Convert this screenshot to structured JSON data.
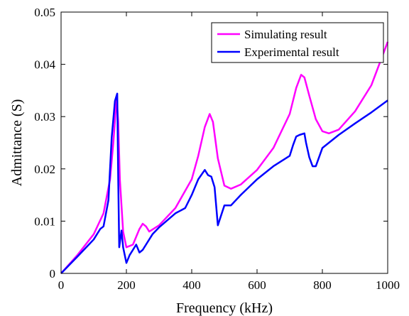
{
  "chart_data": {
    "type": "line",
    "title": "",
    "xlabel": "Frequency (kHz)",
    "ylabel": "Admittance (S)",
    "xlim": [
      0,
      1000
    ],
    "ylim": [
      0,
      0.05
    ],
    "x_ticks": [
      0,
      200,
      400,
      600,
      800,
      1000
    ],
    "x_tick_labels": [
      "0",
      "200",
      "400",
      "600",
      "800",
      "1000"
    ],
    "y_ticks": [
      0,
      0.01,
      0.02,
      0.03,
      0.04,
      0.05
    ],
    "y_tick_labels": [
      "0",
      "0.01",
      "0.02",
      "0.03",
      "0.04",
      "0.05"
    ],
    "grid": false,
    "legend_position": "top-right",
    "series": [
      {
        "name": "Simulating result",
        "color": "#ff00ff",
        "x": [
          0,
          50,
          100,
          130,
          150,
          160,
          170,
          175,
          180,
          190,
          200,
          220,
          240,
          250,
          260,
          270,
          300,
          350,
          400,
          420,
          440,
          455,
          465,
          480,
          500,
          520,
          550,
          600,
          650,
          700,
          720,
          735,
          745,
          760,
          780,
          800,
          820,
          850,
          900,
          950,
          1000
        ],
        "y": [
          0,
          0.0035,
          0.0075,
          0.0115,
          0.018,
          0.025,
          0.0335,
          0.029,
          0.018,
          0.008,
          0.005,
          0.0055,
          0.0085,
          0.0095,
          0.009,
          0.008,
          0.0092,
          0.0125,
          0.018,
          0.0225,
          0.028,
          0.0305,
          0.029,
          0.022,
          0.0168,
          0.0162,
          0.017,
          0.0198,
          0.024,
          0.0305,
          0.0355,
          0.038,
          0.0375,
          0.034,
          0.0295,
          0.0272,
          0.0268,
          0.0275,
          0.031,
          0.036,
          0.0443
        ]
      },
      {
        "name": "Experimental result",
        "color": "#0000ff",
        "x": [
          0,
          50,
          100,
          120,
          130,
          145,
          155,
          165,
          172,
          175,
          178,
          185,
          190,
          200,
          210,
          230,
          240,
          250,
          260,
          280,
          300,
          350,
          380,
          400,
          420,
          440,
          450,
          460,
          470,
          480,
          500,
          520,
          550,
          600,
          650,
          700,
          710,
          720,
          730,
          745,
          750,
          760,
          770,
          780,
          800,
          850,
          900,
          950,
          1000
        ],
        "y": [
          0,
          0.0032,
          0.0065,
          0.0085,
          0.009,
          0.014,
          0.026,
          0.033,
          0.0344,
          0.018,
          0.005,
          0.0082,
          0.005,
          0.002,
          0.0035,
          0.0055,
          0.004,
          0.0045,
          0.0055,
          0.0075,
          0.0088,
          0.0115,
          0.0125,
          0.015,
          0.018,
          0.0198,
          0.0188,
          0.0185,
          0.0165,
          0.0092,
          0.013,
          0.013,
          0.015,
          0.018,
          0.0205,
          0.0225,
          0.0245,
          0.0262,
          0.0265,
          0.0268,
          0.025,
          0.0222,
          0.0205,
          0.0205,
          0.024,
          0.0265,
          0.0287,
          0.0308,
          0.0331
        ]
      }
    ]
  }
}
